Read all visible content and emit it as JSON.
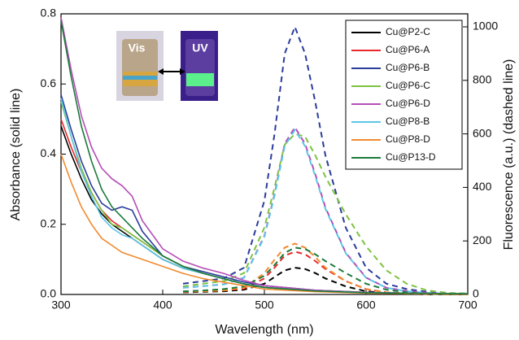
{
  "chart_data": {
    "type": "line",
    "x_label": "Wavelength (nm)",
    "y_label": "Absorbance (solid line)",
    "y2_label": "Fluorescence (a.u.) (dashed line)",
    "inset_labels": [
      "Vis",
      "UV"
    ],
    "x": [
      300,
      310,
      320,
      330,
      340,
      350,
      360,
      370,
      380,
      400,
      420,
      440,
      460,
      480,
      500,
      550,
      600,
      650,
      700
    ],
    "x2": [
      420,
      440,
      460,
      480,
      500,
      510,
      520,
      530,
      540,
      550,
      560,
      580,
      600,
      620,
      640,
      660,
      680,
      700
    ],
    "xlim": [
      300,
      700
    ],
    "xticks": [
      300,
      400,
      500,
      600,
      700
    ],
    "ylim": [
      0,
      0.8
    ],
    "yticks": [
      {
        "value": 0,
        "label": "0.0"
      },
      0.2,
      0.4,
      0.6,
      0.8
    ],
    "y2lim": [
      0,
      1000
    ],
    "y2ticks": [
      0,
      200,
      400,
      600,
      800,
      1000
    ],
    "legend": "upper right",
    "series": [
      {
        "name": "Cu@P2-C",
        "color": "#000000",
        "values": [
          0.48,
          0.4,
          0.33,
          0.27,
          0.23,
          0.2,
          0.18,
          0.16,
          0.14,
          0.1,
          0.075,
          0.06,
          0.045,
          0.03,
          0.02,
          0.01,
          0.005,
          0.003,
          0.002
        ],
        "y2_values": [
          8,
          10,
          12,
          18,
          40,
          65,
          90,
          100,
          95,
          80,
          60,
          30,
          12,
          5,
          2,
          1,
          1,
          0
        ]
      },
      {
        "name": "Cu@P6-A",
        "color": "#e8282b",
        "values": [
          0.5,
          0.42,
          0.35,
          0.29,
          0.24,
          0.21,
          0.19,
          0.17,
          0.15,
          0.11,
          0.08,
          0.06,
          0.045,
          0.03,
          0.02,
          0.01,
          0.005,
          0.003,
          0.002
        ],
        "y2_values": [
          10,
          12,
          15,
          22,
          60,
          100,
          145,
          160,
          150,
          125,
          95,
          50,
          20,
          8,
          4,
          2,
          1,
          1
        ]
      },
      {
        "name": "Cu@P6-B",
        "color": "#2b3c9c",
        "values": [
          0.57,
          0.47,
          0.38,
          0.31,
          0.26,
          0.24,
          0.25,
          0.24,
          0.18,
          0.11,
          0.08,
          0.065,
          0.05,
          0.035,
          0.025,
          0.012,
          0.006,
          0.003,
          0.002
        ],
        "y2_values": [
          40,
          50,
          60,
          100,
          350,
          600,
          900,
          1000,
          900,
          720,
          520,
          250,
          100,
          40,
          20,
          10,
          5,
          3
        ]
      },
      {
        "name": "Cu@P6-C",
        "color": "#7dc242",
        "values": [
          0.55,
          0.45,
          0.36,
          0.29,
          0.24,
          0.2,
          0.19,
          0.17,
          0.15,
          0.11,
          0.08,
          0.06,
          0.045,
          0.03,
          0.02,
          0.01,
          0.005,
          0.003,
          0.002
        ],
        "y2_values": [
          30,
          40,
          50,
          80,
          250,
          400,
          560,
          600,
          590,
          520,
          440,
          300,
          180,
          90,
          40,
          15,
          6,
          3
        ]
      },
      {
        "name": "Cu@P6-D",
        "color": "#b54db5",
        "values": [
          0.79,
          0.64,
          0.51,
          0.42,
          0.36,
          0.33,
          0.31,
          0.28,
          0.21,
          0.13,
          0.095,
          0.075,
          0.06,
          0.04,
          0.025,
          0.012,
          0.006,
          0.003,
          0.002
        ],
        "y2_values": [
          25,
          31,
          38,
          63,
          219,
          375,
          563,
          625,
          563,
          450,
          325,
          156,
          63,
          25,
          13,
          6,
          3,
          2
        ]
      },
      {
        "name": "Cu@P8-B",
        "color": "#5cc6e6",
        "values": [
          0.56,
          0.45,
          0.35,
          0.28,
          0.22,
          0.19,
          0.17,
          0.16,
          0.14,
          0.1,
          0.075,
          0.06,
          0.045,
          0.03,
          0.02,
          0.01,
          0.005,
          0.003,
          0.002
        ],
        "y2_values": [
          25,
          31,
          37,
          62,
          215,
          369,
          554,
          615,
          554,
          443,
          320,
          154,
          62,
          25,
          12,
          6,
          3,
          2
        ]
      },
      {
        "name": "Cu@P8-D",
        "color": "#f28a2e",
        "values": [
          0.4,
          0.32,
          0.25,
          0.2,
          0.16,
          0.14,
          0.12,
          0.11,
          0.1,
          0.08,
          0.06,
          0.045,
          0.035,
          0.025,
          0.015,
          0.008,
          0.004,
          0.002,
          0.001
        ],
        "y2_values": [
          10,
          12,
          15,
          25,
          80,
          130,
          175,
          190,
          175,
          140,
          100,
          50,
          20,
          8,
          4,
          2,
          1,
          1
        ]
      },
      {
        "name": "Cu@P13-D",
        "color": "#1a7a3c",
        "values": [
          0.78,
          0.62,
          0.48,
          0.38,
          0.3,
          0.25,
          0.22,
          0.19,
          0.16,
          0.11,
          0.08,
          0.06,
          0.045,
          0.03,
          0.02,
          0.01,
          0.005,
          0.003,
          0.002
        ],
        "y2_values": [
          12,
          15,
          20,
          30,
          70,
          110,
          155,
          175,
          170,
          150,
          125,
          80,
          40,
          18,
          8,
          3,
          1,
          1
        ]
      }
    ]
  }
}
